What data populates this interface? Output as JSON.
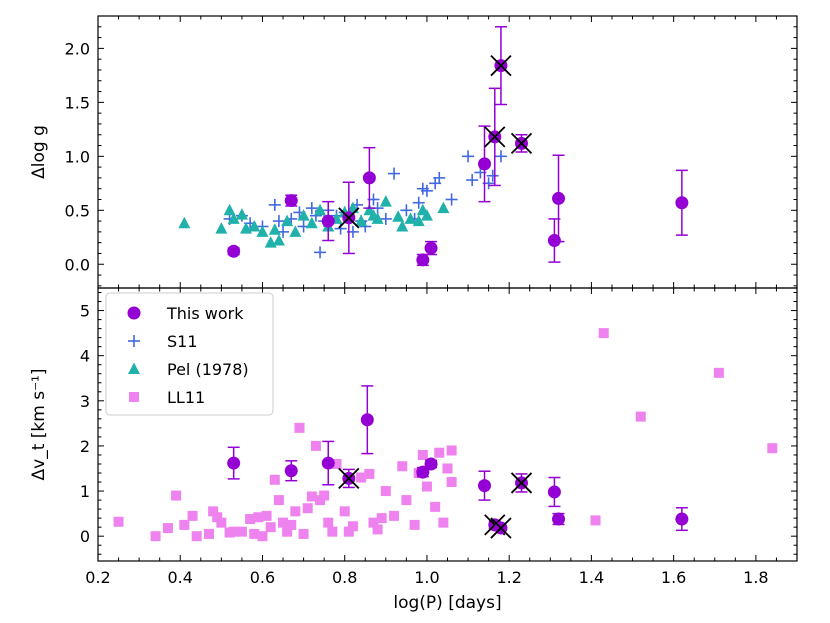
{
  "chart_data": [
    {
      "type": "scatter",
      "panel": "top",
      "ylabel": "Δlog g",
      "xlim": [
        0.2,
        1.9
      ],
      "ylim": [
        -0.22,
        2.3
      ],
      "yticks": [
        0.0,
        0.5,
        1.0,
        1.5,
        2.0
      ],
      "ytick_labels": [
        "0.0",
        "0.5",
        "1.0",
        "1.5",
        "2.0"
      ],
      "series": [
        {
          "name": "S11",
          "marker": "plus",
          "color": "#4169e1",
          "points": [
            [
              0.52,
              0.42
            ],
            [
              0.55,
              0.45
            ],
            [
              0.57,
              0.38
            ],
            [
              0.6,
              0.35
            ],
            [
              0.63,
              0.55
            ],
            [
              0.64,
              0.4
            ],
            [
              0.65,
              0.3
            ],
            [
              0.67,
              0.42
            ],
            [
              0.69,
              0.48
            ],
            [
              0.7,
              0.35
            ],
            [
              0.72,
              0.52
            ],
            [
              0.73,
              0.45
            ],
            [
              0.74,
              0.11
            ],
            [
              0.75,
              0.4
            ],
            [
              0.76,
              0.5
            ],
            [
              0.78,
              0.45
            ],
            [
              0.79,
              0.33
            ],
            [
              0.8,
              0.48
            ],
            [
              0.82,
              0.3
            ],
            [
              0.83,
              0.55
            ],
            [
              0.84,
              0.4
            ],
            [
              0.85,
              0.35
            ],
            [
              0.87,
              0.6
            ],
            [
              0.88,
              0.52
            ],
            [
              0.9,
              0.42
            ],
            [
              0.92,
              0.84
            ],
            [
              0.95,
              0.5
            ],
            [
              0.97,
              0.42
            ],
            [
              0.98,
              0.57
            ],
            [
              0.99,
              0.7
            ],
            [
              1.0,
              0.68
            ],
            [
              1.02,
              0.75
            ],
            [
              1.03,
              0.8
            ],
            [
              1.06,
              0.6
            ],
            [
              1.1,
              1.0
            ],
            [
              1.11,
              0.78
            ],
            [
              1.13,
              0.85
            ],
            [
              1.15,
              0.75
            ],
            [
              1.16,
              0.82
            ],
            [
              1.18,
              1.0
            ]
          ]
        },
        {
          "name": "Pel (1978)",
          "marker": "triangle",
          "color": "#20b2aa",
          "points": [
            [
              0.41,
              0.38
            ],
            [
              0.5,
              0.33
            ],
            [
              0.52,
              0.5
            ],
            [
              0.53,
              0.42
            ],
            [
              0.55,
              0.46
            ],
            [
              0.56,
              0.33
            ],
            [
              0.58,
              0.35
            ],
            [
              0.6,
              0.3
            ],
            [
              0.62,
              0.2
            ],
            [
              0.63,
              0.32
            ],
            [
              0.64,
              0.22
            ],
            [
              0.66,
              0.4
            ],
            [
              0.68,
              0.3
            ],
            [
              0.7,
              0.45
            ],
            [
              0.72,
              0.38
            ],
            [
              0.74,
              0.5
            ],
            [
              0.76,
              0.35
            ],
            [
              0.78,
              0.42
            ],
            [
              0.8,
              0.48
            ],
            [
              0.82,
              0.52
            ],
            [
              0.84,
              0.4
            ],
            [
              0.86,
              0.5
            ],
            [
              0.87,
              0.45
            ],
            [
              0.88,
              0.42
            ],
            [
              0.9,
              0.58
            ],
            [
              0.93,
              0.44
            ],
            [
              0.94,
              0.35
            ],
            [
              0.96,
              0.42
            ],
            [
              0.98,
              0.4
            ],
            [
              0.99,
              0.5
            ],
            [
              1.0,
              0.45
            ],
            [
              1.04,
              0.52
            ]
          ]
        },
        {
          "name": "This work",
          "marker": "circle",
          "color": "#9400d3",
          "points": [
            {
              "x": 0.53,
              "y": 0.12,
              "err": 0.03
            },
            {
              "x": 0.67,
              "y": 0.59,
              "err": 0.05
            },
            {
              "x": 0.76,
              "y": 0.4,
              "err": 0.18
            },
            {
              "x": 0.81,
              "y": 0.43,
              "err": 0.33,
              "flag": true
            },
            {
              "x": 0.86,
              "y": 0.8,
              "err": 0.28
            },
            {
              "x": 0.99,
              "y": 0.04,
              "err": 0.05
            },
            {
              "x": 1.01,
              "y": 0.15,
              "err": 0.06
            },
            {
              "x": 1.14,
              "y": 0.93,
              "err": 0.35
            },
            {
              "x": 1.165,
              "y": 1.18,
              "err": 0.45,
              "flag": true
            },
            {
              "x": 1.18,
              "y": 1.84,
              "err": 0.36,
              "flag": true
            },
            {
              "x": 1.23,
              "y": 1.12,
              "err": 0.08,
              "flag": true
            },
            {
              "x": 1.31,
              "y": 0.22,
              "err": 0.2
            },
            {
              "x": 1.32,
              "y": 0.61,
              "err": 0.4
            },
            {
              "x": 1.62,
              "y": 0.57,
              "err": 0.3
            }
          ]
        }
      ]
    },
    {
      "type": "scatter",
      "panel": "bottom",
      "xlabel": "log(P) [days]",
      "ylabel": "Δv_t [km s⁻¹]",
      "xlim": [
        0.2,
        1.9
      ],
      "ylim": [
        -0.55,
        5.5
      ],
      "xticks": [
        0.2,
        0.4,
        0.6,
        0.8,
        1.0,
        1.2,
        1.4,
        1.6,
        1.8
      ],
      "xtick_labels": [
        "0.2",
        "0.4",
        "0.6",
        "0.8",
        "1.0",
        "1.2",
        "1.4",
        "1.6",
        "1.8"
      ],
      "yticks": [
        0,
        1,
        2,
        3,
        4,
        5
      ],
      "ytick_labels": [
        "0",
        "1",
        "2",
        "3",
        "4",
        "5"
      ],
      "legend": "top-left",
      "series": [
        {
          "name": "LL11",
          "marker": "square",
          "color": "#ee82ee",
          "points": [
            [
              0.25,
              0.32
            ],
            [
              0.37,
              0.18
            ],
            [
              0.39,
              0.9
            ],
            [
              0.41,
              0.25
            ],
            [
              0.43,
              0.45
            ],
            [
              0.44,
              0.0
            ],
            [
              0.47,
              0.05
            ],
            [
              0.48,
              0.55
            ],
            [
              0.49,
              0.42
            ],
            [
              0.5,
              0.3
            ],
            [
              0.52,
              0.08
            ],
            [
              0.55,
              0.1
            ],
            [
              0.57,
              0.38
            ],
            [
              0.58,
              0.05
            ],
            [
              0.59,
              0.42
            ],
            [
              0.6,
              0.0
            ],
            [
              0.61,
              0.45
            ],
            [
              0.62,
              0.2
            ],
            [
              0.63,
              1.25
            ],
            [
              0.64,
              0.8
            ],
            [
              0.65,
              0.3
            ],
            [
              0.66,
              0.1
            ],
            [
              0.67,
              0.25
            ],
            [
              0.68,
              0.55
            ],
            [
              0.69,
              2.4
            ],
            [
              0.7,
              0.05
            ],
            [
              0.71,
              0.62
            ],
            [
              0.72,
              0.88
            ],
            [
              0.73,
              2.0
            ],
            [
              0.74,
              0.8
            ],
            [
              0.75,
              0.9
            ],
            [
              0.76,
              0.3
            ],
            [
              0.77,
              0.1
            ],
            [
              0.78,
              1.6
            ],
            [
              0.8,
              0.55
            ],
            [
              0.81,
              0.1
            ],
            [
              0.82,
              0.22
            ],
            [
              0.84,
              1.3
            ],
            [
              0.86,
              1.38
            ],
            [
              0.87,
              0.3
            ],
            [
              0.88,
              0.15
            ],
            [
              0.89,
              0.4
            ],
            [
              0.9,
              1.0
            ],
            [
              0.92,
              0.45
            ],
            [
              0.94,
              1.55
            ],
            [
              0.95,
              0.8
            ],
            [
              0.97,
              0.25
            ],
            [
              0.98,
              1.4
            ],
            [
              0.99,
              1.8
            ],
            [
              1.0,
              1.1
            ],
            [
              1.02,
              0.65
            ],
            [
              1.03,
              1.85
            ],
            [
              1.04,
              0.3
            ],
            [
              1.05,
              1.5
            ],
            [
              1.06,
              1.2
            ],
            [
              1.06,
              1.9
            ],
            [
              1.41,
              0.35
            ],
            [
              1.43,
              4.5
            ],
            [
              1.52,
              2.65
            ],
            [
              1.71,
              3.62
            ],
            [
              1.84,
              1.95
            ],
            [
              0.34,
              0.0
            ],
            [
              0.53,
              0.1
            ]
          ]
        },
        {
          "name": "This work",
          "marker": "circle",
          "color": "#9400d3",
          "points": [
            {
              "x": 0.53,
              "y": 1.62,
              "err": 0.35
            },
            {
              "x": 0.67,
              "y": 1.45,
              "err": 0.22
            },
            {
              "x": 0.76,
              "y": 1.62,
              "err": 0.48
            },
            {
              "x": 0.81,
              "y": 1.28,
              "err": 0.2,
              "flag": true
            },
            {
              "x": 0.855,
              "y": 2.58,
              "err": 0.75
            },
            {
              "x": 0.99,
              "y": 1.42,
              "err": 0.1
            },
            {
              "x": 1.01,
              "y": 1.6,
              "err": 0.08
            },
            {
              "x": 1.14,
              "y": 1.12,
              "err": 0.32
            },
            {
              "x": 1.165,
              "y": 0.25,
              "err": 0.08,
              "flag": true
            },
            {
              "x": 1.18,
              "y": 0.18,
              "err": 0.05,
              "flag": true
            },
            {
              "x": 1.23,
              "y": 1.18,
              "err": 0.2,
              "flag": true
            },
            {
              "x": 1.31,
              "y": 0.98,
              "err": 0.32
            },
            {
              "x": 1.32,
              "y": 0.38,
              "err": 0.12
            },
            {
              "x": 1.62,
              "y": 0.38,
              "err": 0.25
            }
          ]
        }
      ]
    }
  ],
  "legend_entries": [
    "This work",
    "S11",
    "Pel (1978)",
    "LL11"
  ]
}
